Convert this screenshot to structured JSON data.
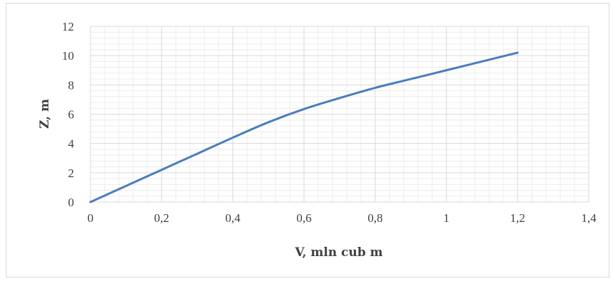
{
  "chart_data": {
    "type": "line",
    "xlabel": "V, mln cub m",
    "ylabel": "Z, m",
    "xlim": [
      0,
      1.4
    ],
    "ylim": [
      0,
      12
    ],
    "x_ticks": [
      "0",
      "0,2",
      "0,4",
      "0,6",
      "0,8",
      "1",
      "1,2",
      "1,4"
    ],
    "y_ticks": [
      "0",
      "2",
      "4",
      "6",
      "8",
      "10",
      "12"
    ],
    "grid": true,
    "minor_grid": true,
    "legend": "none",
    "series": [
      {
        "color": "#4a7ebb",
        "x": [
          0,
          0.1,
          0.2,
          0.3,
          0.4,
          0.5,
          0.6,
          0.7,
          0.8,
          0.9,
          1.0,
          1.1,
          1.2
        ],
        "y": [
          0,
          1.1,
          2.2,
          3.3,
          4.4,
          5.45,
          6.35,
          7.1,
          7.8,
          8.4,
          9.0,
          9.6,
          10.2
        ]
      }
    ]
  }
}
